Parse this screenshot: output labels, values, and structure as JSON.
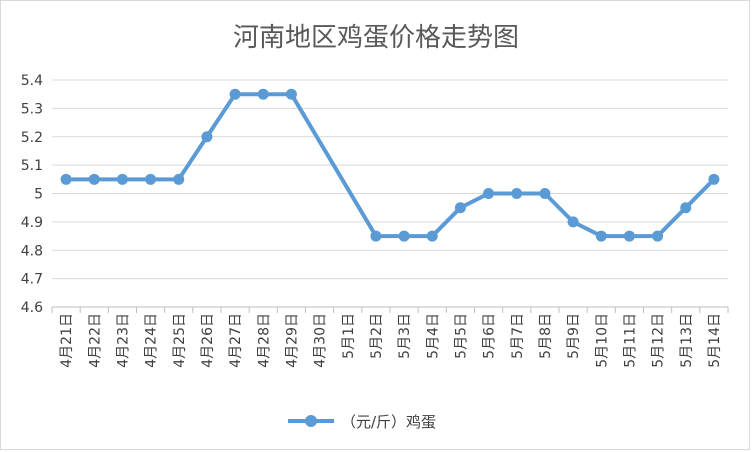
{
  "chart_data": {
    "type": "line",
    "title": "河南地区鸡蛋价格走势图",
    "xlabel": "",
    "ylabel": "",
    "categories": [
      "4月21日",
      "4月22日",
      "4月23日",
      "4月24日",
      "4月25日",
      "4月26日",
      "4月27日",
      "4月28日",
      "4月29日",
      "4月30日",
      "5月1日",
      "5月2日",
      "5月3日",
      "5月4日",
      "5月5日",
      "5月6日",
      "5月7日",
      "5月8日",
      "5月9日",
      "5月10日",
      "5月11日",
      "5月12日",
      "5月13日",
      "5月14日"
    ],
    "series": [
      {
        "name": "（元/斤）鸡蛋",
        "values": [
          5.05,
          5.05,
          5.05,
          5.05,
          5.05,
          5.2,
          5.35,
          5.35,
          5.35,
          null,
          null,
          4.85,
          4.85,
          4.85,
          4.95,
          5.0,
          5.0,
          5.0,
          4.9,
          4.85,
          4.85,
          4.85,
          4.95,
          5.05
        ]
      }
    ],
    "ylim": [
      4.6,
      5.4
    ],
    "yticks": [
      "4.6",
      "4.7",
      "4.8",
      "4.9",
      "5",
      "5.1",
      "5.2",
      "5.3",
      "5.4"
    ],
    "grid": true,
    "legend": "bottom",
    "colors": {
      "line": "#5b9bd5",
      "grid": "#d9d9d9",
      "axis": "#bfbfbf"
    }
  }
}
